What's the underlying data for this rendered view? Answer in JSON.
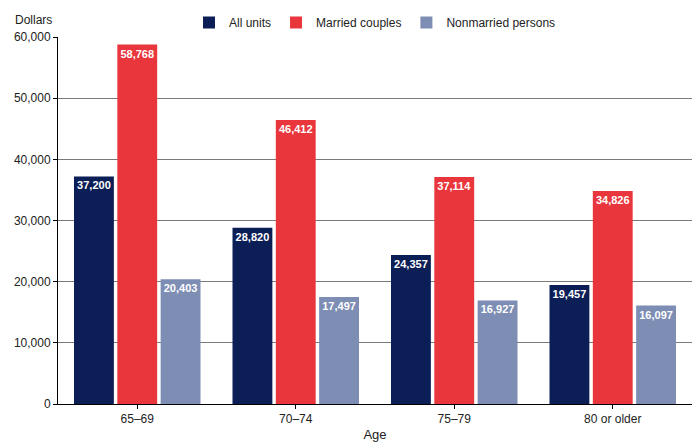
{
  "chart_data": {
    "type": "bar",
    "xlabel": "Age",
    "ylabel": "Dollars",
    "categories": [
      "65–69",
      "70–74",
      "75–79",
      "80 or older"
    ],
    "series": [
      {
        "name": "All units",
        "color": "#0b1e55",
        "values": [
          37200,
          28820,
          24357,
          19457
        ],
        "value_labels": [
          "37,200",
          "28,820",
          "24,357",
          "19,457"
        ]
      },
      {
        "name": "Married couples",
        "color": "#e8363c",
        "values": [
          58768,
          46412,
          37114,
          34826
        ],
        "value_labels": [
          "58,768",
          "46,412",
          "37,114",
          "34,826"
        ]
      },
      {
        "name": "Nonmarried persons",
        "color": "#7d8db3",
        "values": [
          20403,
          17497,
          16927,
          16097
        ],
        "value_labels": [
          "20,403",
          "17,497",
          "16,927",
          "16,097"
        ]
      }
    ],
    "ylim": [
      0,
      60000
    ],
    "yticks": [
      0,
      {
        "value": 10000,
        "label": "10,000"
      },
      {
        "value": 20000,
        "label": "20,000"
      },
      {
        "value": 30000,
        "label": "30,000"
      },
      {
        "value": 40000,
        "label": "40,000"
      },
      {
        "value": 50000,
        "label": "50,000"
      },
      {
        "value": 60000,
        "label": "60,000"
      }
    ],
    "grid": true,
    "legend": "top",
    "data_labels": true
  }
}
